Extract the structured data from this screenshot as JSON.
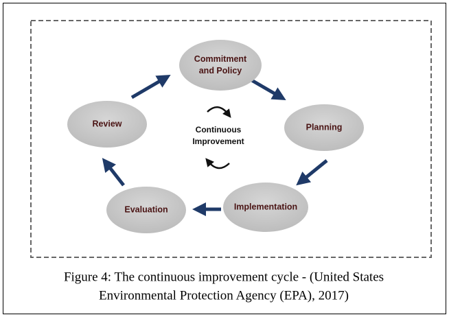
{
  "nodes": [
    {
      "label": [
        "Commitment",
        "and Policy"
      ]
    },
    {
      "label": [
        "Planning"
      ]
    },
    {
      "label": [
        "Implementation"
      ]
    },
    {
      "label": [
        "Evaluation"
      ]
    },
    {
      "label": [
        "Review"
      ]
    }
  ],
  "center": {
    "label": [
      "Continuous",
      "Improvement"
    ]
  },
  "caption": [
    "Figure 4: The continuous improvement cycle - (United States",
    "Environmental Protection Agency (EPA), 2017)"
  ]
}
